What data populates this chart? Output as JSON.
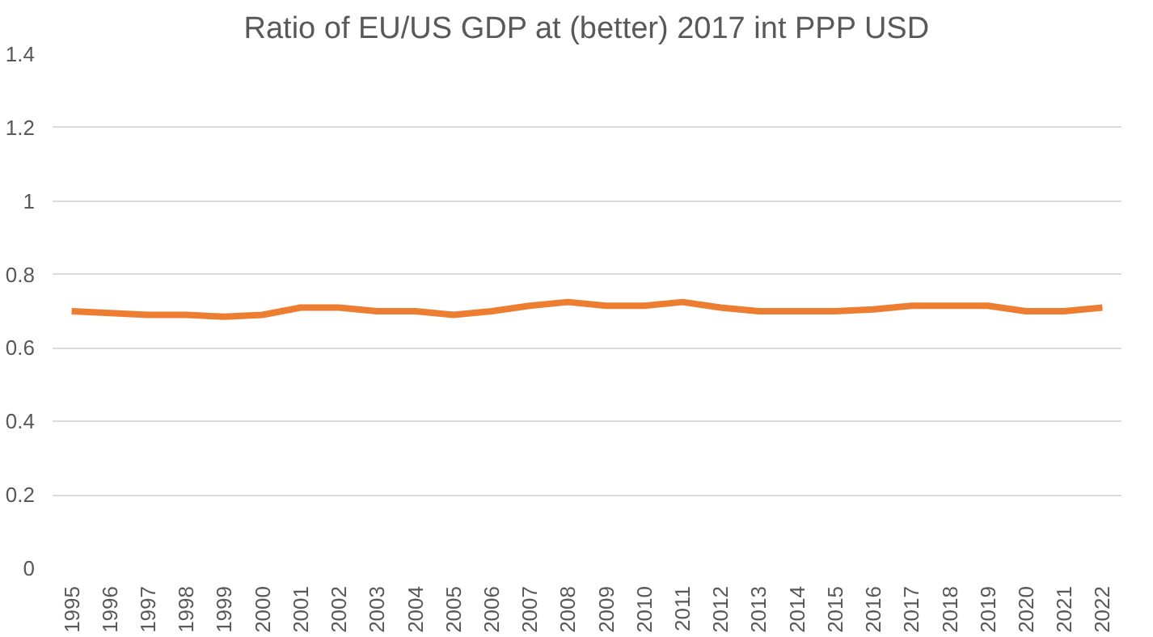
{
  "chart_data": {
    "type": "line",
    "title": "Ratio of EU/US GDP at (better) 2017 int PPP USD",
    "categories": [
      "1995",
      "1996",
      "1997",
      "1998",
      "1999",
      "2000",
      "2001",
      "2002",
      "2003",
      "2004",
      "2005",
      "2006",
      "2007",
      "2008",
      "2009",
      "2010",
      "2011",
      "2012",
      "2013",
      "2014",
      "2015",
      "2016",
      "2017",
      "2018",
      "2019",
      "2020",
      "2021",
      "2022"
    ],
    "series": [
      {
        "color": "#ed7d31",
        "values": [
          0.7,
          0.695,
          0.69,
          0.69,
          0.685,
          0.69,
          0.71,
          0.71,
          0.7,
          0.7,
          0.69,
          0.7,
          0.715,
          0.725,
          0.715,
          0.715,
          0.725,
          0.71,
          0.7,
          0.7,
          0.7,
          0.705,
          0.715,
          0.715,
          0.715,
          0.7,
          0.7,
          0.71
        ]
      }
    ],
    "ylim": [
      0,
      1.4
    ],
    "yticks": [
      0,
      0.2,
      0.4,
      0.6,
      0.8,
      1,
      1.2,
      1.4
    ],
    "grid": "y",
    "marker": "none",
    "line_style": "solid"
  }
}
